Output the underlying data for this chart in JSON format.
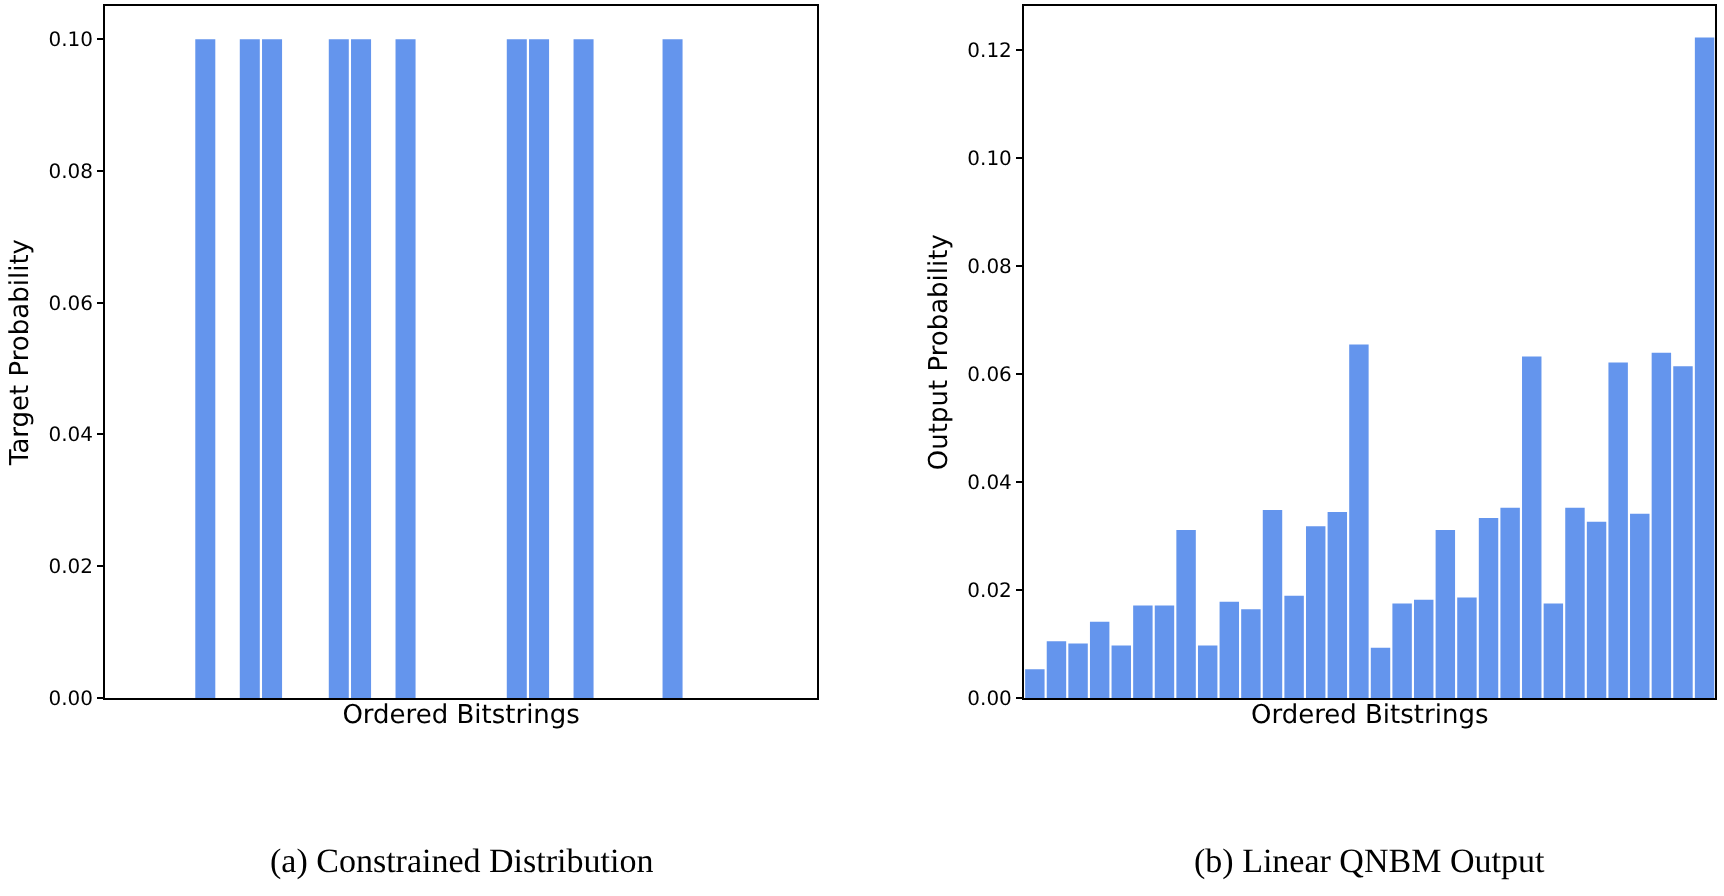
{
  "chart_data": [
    {
      "type": "bar",
      "xlabel": "Ordered Bitstrings",
      "ylabel": "Target Probability",
      "color": "#6495ed",
      "tick_labels": "y",
      "categories": [
        null,
        null,
        null,
        null,
        null,
        null,
        null,
        null,
        null,
        null,
        null,
        null,
        null,
        null,
        null,
        null,
        null,
        null,
        null,
        null,
        null,
        null,
        null,
        null,
        null,
        null,
        null,
        null,
        null,
        null,
        null,
        null
      ],
      "values": [
        null,
        null,
        null,
        null,
        0.1,
        null,
        0.1,
        0.1,
        null,
        null,
        0.1,
        0.1,
        null,
        0.1,
        null,
        null,
        null,
        null,
        0.1,
        0.1,
        null,
        0.1,
        null,
        null,
        null,
        0.1,
        null,
        null,
        null,
        null,
        null,
        null
      ],
      "ylim": [
        0,
        0.105
      ],
      "yticks": [
        {
          "value": 0,
          "label": "0.00"
        },
        {
          "value": 0.02,
          "label": "0.02"
        },
        {
          "value": 0.04,
          "label": "0.04"
        },
        {
          "value": 0.06,
          "label": "0.06"
        },
        {
          "value": 0.08,
          "label": "0.08"
        },
        {
          "value": 0.1,
          "label": "0.10"
        }
      ],
      "annotations": [
        "(a) Constrained Distribution"
      ]
    },
    {
      "type": "bar",
      "xlabel": "Ordered Bitstrings",
      "ylabel": "Output Probability",
      "color": "#6495ed",
      "tick_labels": "y",
      "categories": [
        null,
        null,
        null,
        null,
        null,
        null,
        null,
        null,
        null,
        null,
        null,
        null,
        null,
        null,
        null,
        null,
        null,
        null,
        null,
        null,
        null,
        null,
        null,
        null,
        null,
        null,
        null,
        null,
        null,
        null,
        null,
        null
      ],
      "values": [
        0.0053,
        0.0105,
        0.0101,
        0.0141,
        0.0097,
        0.0171,
        0.0171,
        0.0311,
        0.0097,
        0.0178,
        0.0164,
        0.0348,
        0.0189,
        0.0318,
        0.0344,
        0.0654,
        0.0093,
        0.0175,
        0.0182,
        0.0311,
        0.0186,
        0.0333,
        0.0352,
        0.0632,
        0.0175,
        0.0352,
        0.0326,
        0.0621,
        0.0341,
        0.0639,
        0.0614,
        0.1222
      ],
      "ylim": [
        0,
        0.128
      ],
      "yticks": [
        {
          "value": 0,
          "label": "0.00"
        },
        {
          "value": 0.02,
          "label": "0.02"
        },
        {
          "value": 0.04,
          "label": "0.04"
        },
        {
          "value": 0.06,
          "label": "0.06"
        },
        {
          "value": 0.08,
          "label": "0.08"
        },
        {
          "value": 0.1,
          "label": "0.10"
        },
        {
          "value": 0.12,
          "label": "0.12"
        }
      ],
      "annotations": [
        "(b) Linear QNBM Output"
      ]
    }
  ]
}
